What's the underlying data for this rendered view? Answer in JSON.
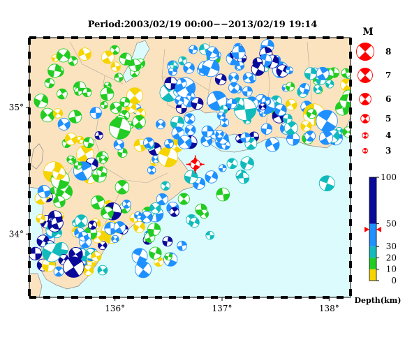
{
  "title": "Period:2003/02/19 00:00−−2013/02/19 19:14",
  "map": {
    "lon_range": [
      135.2,
      138.2
    ],
    "lat_range": [
      33.5,
      35.55
    ],
    "x_ticks": [
      {
        "value": 136,
        "label": "136°"
      },
      {
        "value": 137,
        "label": "137°"
      },
      {
        "value": 138,
        "label": "138°"
      }
    ],
    "y_ticks": [
      {
        "value": 35,
        "label": "35°"
      },
      {
        "value": 34,
        "label": "34°"
      }
    ],
    "colors": {
      "land": "#fbe3c0",
      "sea": "#dcfbfd",
      "coast": "#888888",
      "mainshock": "#ff0000"
    },
    "mainshock": {
      "lon": 136.75,
      "lat": 34.55
    },
    "depth_scale_note": "colors by depth bins"
  },
  "magnitude_legend": {
    "title": "M",
    "items": [
      {
        "label": "8",
        "m": 8
      },
      {
        "label": "7",
        "m": 7
      },
      {
        "label": "6",
        "m": 6
      },
      {
        "label": "5",
        "m": 5
      },
      {
        "label": "4",
        "m": 4
      },
      {
        "label": "3",
        "m": 3
      }
    ]
  },
  "depth_legend": {
    "label": "Depth(km)",
    "ticks": [
      {
        "label": "100",
        "value": 100
      },
      {
        "label": "50",
        "value": 50
      },
      {
        "label": "30",
        "value": 30
      },
      {
        "label": "20",
        "value": 20
      },
      {
        "label": "10",
        "value": 10
      },
      {
        "label": "0",
        "value": 0
      }
    ],
    "bins": [
      {
        "from": 0,
        "to": 10,
        "color": "#f5d400"
      },
      {
        "from": 10,
        "to": 20,
        "color": "#22cc22"
      },
      {
        "from": 20,
        "to": 30,
        "color": "#11bbbb"
      },
      {
        "from": 30,
        "to": 50,
        "color": "#1e90ff"
      },
      {
        "from": 50,
        "to": 100,
        "color": "#0a0a9a"
      }
    ]
  }
}
